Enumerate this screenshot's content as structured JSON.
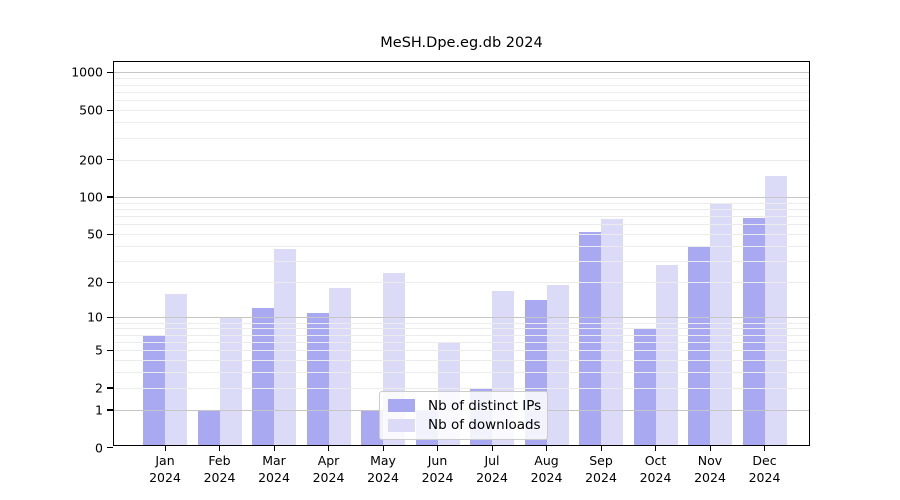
{
  "title": "MeSH.Dpe.eg.db 2024",
  "legend": {
    "items": [
      {
        "label": "Nb of distinct IPs",
        "color": "#a9a9f1"
      },
      {
        "label": "Nb of downloads",
        "color": "#dbdbf8"
      }
    ]
  },
  "axis": {
    "ytick_labels": [
      "1000",
      "500",
      "200",
      "100",
      "50",
      "20",
      "10",
      "5",
      "2",
      "1",
      "0"
    ]
  },
  "chart_data": {
    "type": "bar",
    "title": "MeSH.Dpe.eg.db 2024",
    "categories": [
      "Jan 2024",
      "Feb 2024",
      "Mar 2024",
      "Apr 2024",
      "May 2024",
      "Jun 2024",
      "Jul 2024",
      "Aug 2024",
      "Sep 2024",
      "Oct 2024",
      "Nov 2024",
      "Dec 2024"
    ],
    "series": [
      {
        "name": "Nb of distinct IPs",
        "color": "#a9a9f1",
        "values": [
          7,
          1,
          12,
          11,
          1,
          1,
          2,
          14,
          52,
          8,
          39,
          68
        ]
      },
      {
        "name": "Nb of downloads",
        "color": "#dbdbf8",
        "values": [
          16,
          10,
          38,
          18,
          24,
          6,
          17,
          19,
          66,
          28,
          88,
          148
        ]
      }
    ],
    "xlabel": "",
    "ylabel": "",
    "yscale": "log10(1+x)",
    "yticks": [
      0,
      1,
      2,
      5,
      10,
      20,
      50,
      100,
      200,
      500,
      1000
    ],
    "ylim": [
      0,
      1200
    ],
    "grid": true,
    "grid_minor": true,
    "legend_position": "inside-bottom-center",
    "bar_colors": {
      "distinct_ips": "#a9a9f1",
      "downloads": "#dbdbf8"
    },
    "gridline_colors": {
      "minor": "#ececec",
      "major": "#c6c6c6"
    }
  }
}
